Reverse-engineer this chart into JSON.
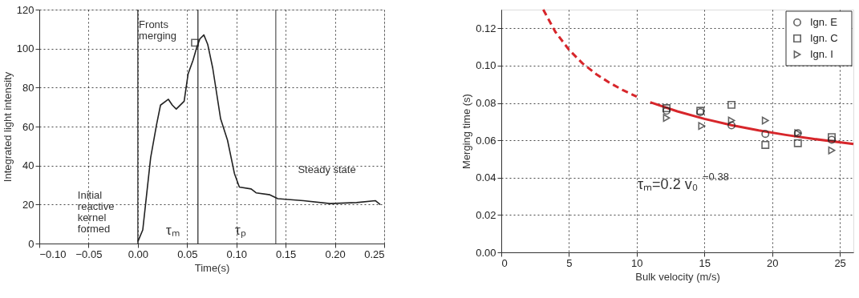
{
  "chart_data": [
    {
      "type": "line",
      "xlabel": "Time(s)",
      "ylabel": "Integrated light intensity",
      "xlim": [
        -0.1,
        0.25
      ],
      "ylim": [
        0,
        120
      ],
      "xticks": [
        {
          "value": -0.1,
          "label": "−0.10"
        },
        {
          "value": -0.05,
          "label": "−0.05"
        },
        {
          "value": 0,
          "label": "0.00"
        },
        {
          "value": 0.05,
          "label": "0.05"
        },
        {
          "value": 0.1,
          "label": "0.10"
        },
        {
          "value": 0.15,
          "label": "0.15"
        },
        {
          "value": 0.2,
          "label": "0.20"
        },
        {
          "value": 0.25,
          "label": "0.25"
        }
      ],
      "yticks": [
        0,
        20,
        40,
        60,
        80,
        100,
        120
      ],
      "grid": true,
      "legend": false,
      "series": [
        {
          "color": "#222222",
          "marker": "none",
          "line_style": "solid",
          "x": [
            0,
            0.005,
            0.013,
            0.019,
            0.023,
            0.031,
            0.035,
            0.039,
            0.047,
            0.051,
            0.056,
            0.06,
            0.063,
            0.067,
            0.071,
            0.076,
            0.084,
            0.091,
            0.098,
            0.103,
            0.115,
            0.12,
            0.134,
            0.142,
            0.155,
            0.168,
            0.195,
            0.222,
            0.241,
            0.246
          ],
          "values": [
            1,
            7,
            44,
            61,
            71,
            74,
            71,
            69,
            73,
            87,
            94,
            101,
            105,
            107,
            102,
            90,
            64,
            53,
            36,
            29,
            28,
            26,
            25,
            23,
            22.5,
            22,
            20.5,
            21,
            22,
            20
          ]
        },
        {
          "type": "scatter",
          "color": "#222222",
          "marker": "square",
          "x": [
            0.058
          ],
          "values": [
            103
          ]
        }
      ],
      "ref_lines": [
        {
          "axis": "x",
          "value": 0,
          "color": "#222222"
        },
        {
          "axis": "x",
          "value": 0.061,
          "color": "#222222"
        },
        {
          "axis": "x",
          "value": 0.14,
          "color": "#555555"
        }
      ],
      "annotations": [
        {
          "text": "Fronts\nmerging",
          "x": 0.058,
          "y": 103
        },
        {
          "text": "Initial\nreactive\nkernel\nformed",
          "x": 0,
          "y": 0
        },
        {
          "text": "Steady state",
          "x": 0.16,
          "y": 22
        },
        "τₘ",
        "τₚ"
      ]
    },
    {
      "type": "scatter",
      "xlabel": "Bulk velocity (m/s)",
      "ylabel": "Merging time (s)",
      "xlim": [
        0,
        26
      ],
      "ylim": [
        0,
        0.13
      ],
      "xticks": [
        0,
        5,
        10,
        15,
        20,
        25
      ],
      "yticks": [
        {
          "value": 0,
          "label": "0.00"
        },
        {
          "value": 0.02,
          "label": "0.02"
        },
        {
          "value": 0.04,
          "label": "0.04"
        },
        {
          "value": 0.06,
          "label": "0.06"
        },
        {
          "value": 0.08,
          "label": "0.08"
        },
        {
          "value": 0.1,
          "label": "0.10"
        },
        {
          "value": 0.12,
          "label": "0.12"
        }
      ],
      "grid": true,
      "legend": "top right",
      "series": [
        {
          "type": "line",
          "color": "#d7262b",
          "line_style": "dashed",
          "marker": "none",
          "x": [
            3.1,
            4,
            5,
            6,
            7,
            8,
            9,
            10
          ],
          "values": [
            0.13,
            0.118,
            0.1085,
            0.1012,
            0.0955,
            0.0908,
            0.0868,
            0.0834
          ]
        },
        {
          "type": "line",
          "color": "#d7262b",
          "line_style": "solid",
          "marker": "none",
          "x": [
            11,
            13,
            15,
            17,
            19,
            21,
            23,
            26
          ],
          "values": [
            0.0804,
            0.0755,
            0.0715,
            0.0681,
            0.0653,
            0.0629,
            0.0608,
            0.058
          ]
        },
        {
          "name": "Ign. E",
          "color": "#222222",
          "marker": "circle",
          "x": [
            12.2,
            14.7,
            17.0,
            19.5,
            21.9,
            24.4
          ],
          "values": [
            0.0758,
            0.0751,
            0.068,
            0.0634,
            0.0638,
            0.0603
          ]
        },
        {
          "name": "Ign. C",
          "color": "#222222",
          "marker": "square",
          "x": [
            12.2,
            14.7,
            17.0,
            19.5,
            21.9,
            24.4
          ],
          "values": [
            0.0772,
            0.0758,
            0.079,
            0.0575,
            0.0585,
            0.0617
          ]
        },
        {
          "name": "Ign. I",
          "color": "#222222",
          "marker": "triangle",
          "x": [
            12.2,
            14.8,
            17.0,
            19.5,
            21.9,
            24.4
          ],
          "values": [
            0.072,
            0.0677,
            0.0706,
            0.0706,
            0.0638,
            0.0546
          ]
        }
      ],
      "annotations": [
        "τₘ=0.2 v₀$^{−0.38}$"
      ]
    }
  ]
}
